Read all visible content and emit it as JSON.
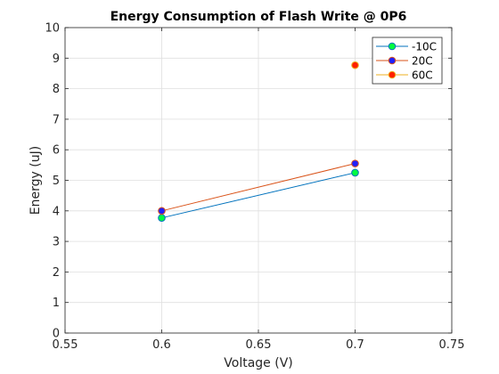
{
  "chart_data": {
    "type": "line",
    "title": "Energy Consumption of Flash Write @ 0P6",
    "xlabel": "Voltage (V)",
    "ylabel": "Energy (uJ)",
    "xlim": [
      0.55,
      0.75
    ],
    "ylim": [
      0,
      10
    ],
    "xticks": [
      0.55,
      0.6,
      0.65,
      0.7,
      0.75
    ],
    "xtick_labels": [
      "0.55",
      "0.6",
      "0.65",
      "0.7",
      "0.75"
    ],
    "yticks": [
      0,
      1,
      2,
      3,
      4,
      5,
      6,
      7,
      8,
      9,
      10
    ],
    "ytick_labels": [
      "0",
      "1",
      "2",
      "3",
      "4",
      "5",
      "6",
      "7",
      "8",
      "9",
      "10"
    ],
    "grid": true,
    "legend_position": "top-right",
    "series": [
      {
        "name": "-10C",
        "line_color": "#0072BD",
        "marker_color": "#00ff40",
        "x": [
          0.6,
          0.7
        ],
        "y": [
          3.77,
          5.25
        ]
      },
      {
        "name": "20C",
        "line_color": "#D95319",
        "marker_color": "#2020ff",
        "x": [
          0.6,
          0.7
        ],
        "y": [
          4.0,
          5.55
        ]
      },
      {
        "name": "60C",
        "line_color": "#EDB120",
        "marker_color": "#ff2000",
        "x": [
          0.7
        ],
        "y": [
          8.77
        ]
      }
    ]
  }
}
